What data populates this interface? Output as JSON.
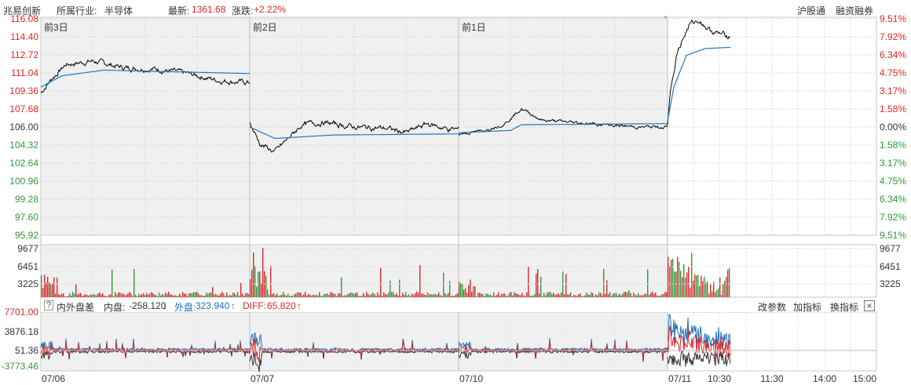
{
  "header": {
    "stock_name": "兆易创新",
    "industry_label": "所属行业:",
    "industry": "半导体",
    "latest_label": "最新:",
    "latest": "1361.68",
    "change_label": "涨跌:",
    "change": "+2.22%",
    "links": [
      "沪股通",
      "融资融券"
    ]
  },
  "price_panel": {
    "y_left": [
      "116.08",
      "114.40",
      "112.72",
      "111.04",
      "109.36",
      "107.68",
      "106.00",
      "104.32",
      "102.64",
      "100.96",
      "99.28",
      "97.60",
      "95.92"
    ],
    "y_right": [
      "9.51%",
      "7.92%",
      "6.34%",
      "4.75%",
      "3.17%",
      "1.58%",
      "0.00%",
      "1.58%",
      "3.17%",
      "4.75%",
      "6.34%",
      "7.92%",
      "9.51%"
    ],
    "day_labels": [
      "前3日",
      "前2日",
      "前1日"
    ],
    "marker": "*",
    "colors": {
      "price": "#000000",
      "avg": "#1f78c8",
      "up": "#e0262a",
      "down": "#2e9a3a",
      "bg_hist": "#f0f0f0"
    }
  },
  "volume_panel": {
    "y_left": [
      "9677",
      "6451",
      "3225"
    ],
    "y_right": [
      "9677",
      "6451",
      "3225"
    ]
  },
  "indicator_panel": {
    "name": "内外盘差",
    "help_icon": "?",
    "inner_label": "内盘:",
    "inner_value": "-258.120",
    "inner_arrow": "↓",
    "outer_label": "外盘:",
    "outer_value": "323.940",
    "outer_arrow": "↑",
    "diff_label": "DIFF:",
    "diff_value": "65.820",
    "diff_arrow": "↑",
    "buttons": [
      "改参数",
      "加指标",
      "换指标"
    ],
    "close": "×",
    "y_left": [
      "7701.00",
      "3876.18",
      "51.36",
      "-3773.46"
    ]
  },
  "x_axis": {
    "labels": [
      "07/06",
      "07/07",
      "07/10",
      "07/11",
      "10:30",
      "11:30",
      "14:00",
      "15:00"
    ]
  }
}
